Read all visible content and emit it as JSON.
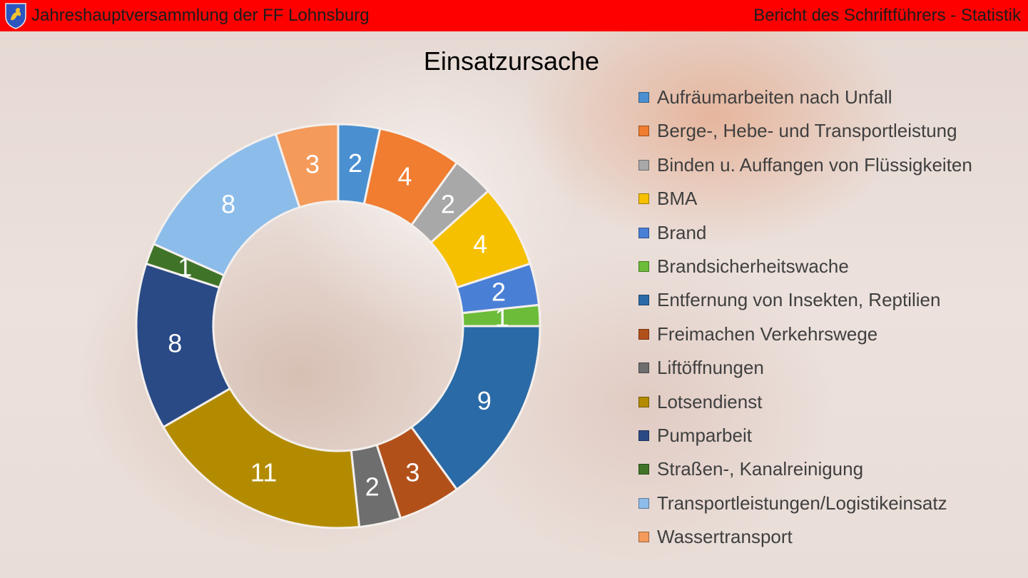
{
  "header": {
    "left_title": "Jahreshauptversammlung der FF Lohnsburg",
    "right_title": "Bericht des Schriftführers - Statistik"
  },
  "chart_data": {
    "type": "donut",
    "title": "Einsatzursache",
    "legend_position": "right",
    "categories": [
      "Aufräumarbeiten nach Unfall",
      "Berge-, Hebe- und Transportleistung",
      "Binden u. Auffangen von Flüssigkeiten",
      "BMA",
      "Brand",
      "Brandsicherheitswache",
      "Entfernung von Insekten, Reptilien",
      "Freimachen Verkehrswege",
      "Liftöffnungen",
      "Lotsendienst",
      "Pumparbeit",
      "Straßen-, Kanalreinigung",
      "Transportleistungen/Logistikeinsatz",
      "Wassertransport"
    ],
    "values": [
      2,
      4,
      2,
      4,
      2,
      1,
      9,
      3,
      2,
      11,
      8,
      1,
      8,
      3
    ],
    "colors": [
      "#4a90d0",
      "#f07d30",
      "#a8a8a8",
      "#f5c000",
      "#4a7fd6",
      "#6cbc3a",
      "#2a6aa6",
      "#b2501a",
      "#6e6e6e",
      "#b38b00",
      "#2a4a86",
      "#3f7428",
      "#8cbcea",
      "#f49a5a"
    ]
  }
}
